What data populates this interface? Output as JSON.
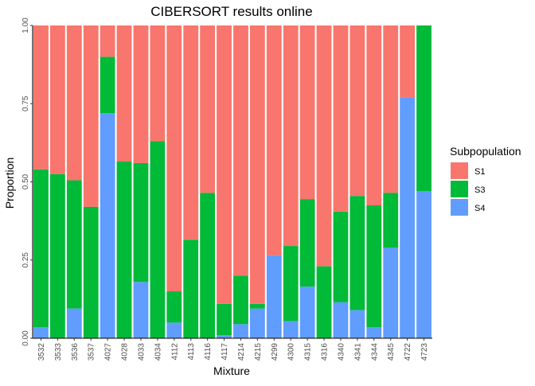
{
  "chart_data": {
    "type": "bar",
    "stacked": true,
    "title": "CIBERSORT results online",
    "xlabel": "Mixture",
    "ylabel": "Proportion",
    "ylim": [
      0,
      1
    ],
    "yticks": [
      "0.00",
      "0.25",
      "0.50",
      "0.75",
      "1.00"
    ],
    "ytick_values": [
      0,
      0.25,
      0.5,
      0.75,
      1
    ],
    "grid": false,
    "legend_position": "right",
    "legend_title": "Subpopulation",
    "categories": [
      "3532",
      "3533",
      "3536",
      "3537",
      "4027",
      "4028",
      "4033",
      "4034",
      "4112",
      "4113",
      "4116",
      "4117",
      "4214",
      "4215",
      "4299",
      "4300",
      "4315",
      "4316",
      "4340",
      "4341",
      "4344",
      "4345",
      "4722",
      "4723"
    ],
    "series": [
      {
        "name": "S4",
        "color": "#619CFF",
        "values": [
          0.035,
          0,
          0.095,
          0,
          0.72,
          0,
          0.18,
          0,
          0.05,
          0,
          0,
          0.01,
          0.045,
          0.095,
          0.265,
          0.055,
          0.165,
          0,
          0.115,
          0.09,
          0.035,
          0.29,
          0.77,
          0.47
        ]
      },
      {
        "name": "S3",
        "color": "#00BA38",
        "values": [
          0.505,
          0.525,
          0.41,
          0.42,
          0.18,
          0.565,
          0.38,
          0.63,
          0.1,
          0.315,
          0.465,
          0.1,
          0.155,
          0.015,
          0,
          0.24,
          0.28,
          0.23,
          0.29,
          0.365,
          0.39,
          0.175,
          0,
          0.53
        ]
      },
      {
        "name": "S1",
        "color": "#F8766D",
        "values": [
          0.46,
          0.475,
          0.495,
          0.58,
          0.1,
          0.435,
          0.44,
          0.37,
          0.85,
          0.685,
          0.535,
          0.89,
          0.8,
          0.89,
          0.735,
          0.705,
          0.555,
          0.77,
          0.595,
          0.545,
          0.575,
          0.535,
          0.23,
          0
        ]
      }
    ],
    "legend_order": [
      "S1",
      "S3",
      "S4"
    ]
  }
}
